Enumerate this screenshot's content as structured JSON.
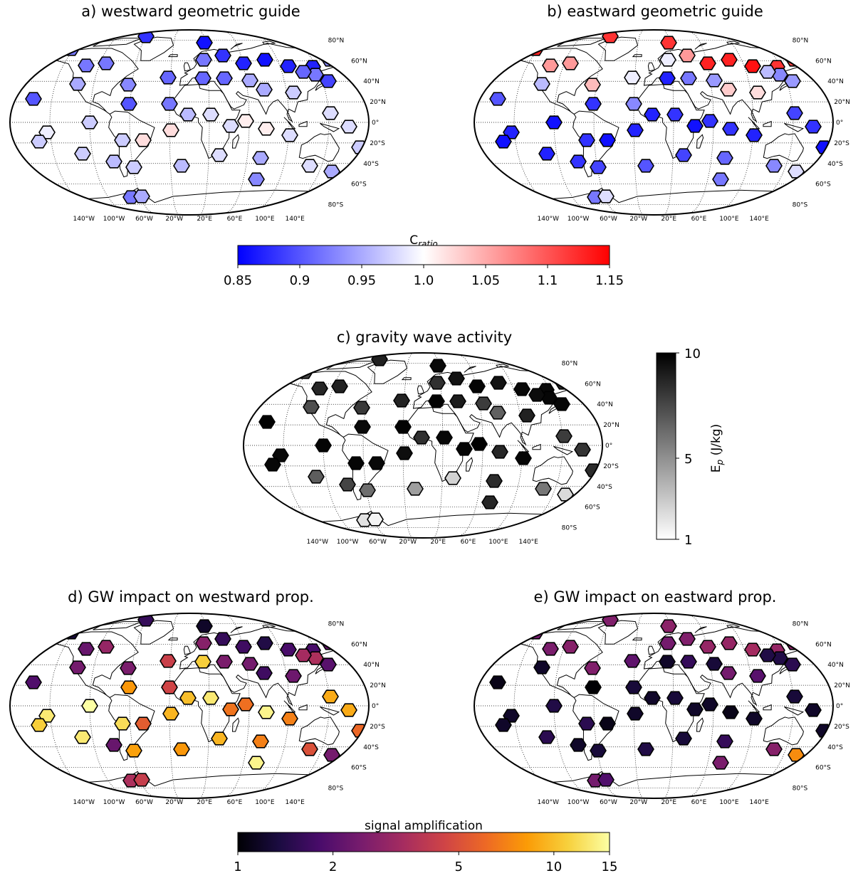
{
  "panels": [
    {
      "id": "a",
      "title": "a) westward geometric guide",
      "scale": "ratio",
      "values": [
        0.92,
        0.88,
        0.92,
        0.92,
        0.86,
        0.88,
        0.87,
        0.86,
        0.87,
        0.87,
        0.93,
        0.95,
        0.93,
        0.91,
        0.92,
        0.91,
        0.95,
        0.95,
        0.97,
        0.92,
        0.89,
        0.91,
        0.93,
        0.9,
        0.9,
        0.91,
        0.92,
        0.97,
        0.99,
        0.97,
        0.97,
        1.02,
        1.02,
        0.96,
        0.98,
        0.98,
        1.01,
        1.01,
        0.98,
        0.98,
        0.98,
        0.97,
        0.97,
        0.96,
        0.97,
        0.96,
        0.98,
        0.95,
        0.93,
        0.98,
        0.95,
        0.94,
        0.92,
        0.95
      ]
    },
    {
      "id": "b",
      "title": "b) eastward geometric guide",
      "scale": "ratio",
      "values": [
        1.13,
        1.12,
        1.06,
        1.06,
        1.12,
        1.06,
        1.13,
        1.13,
        1.14,
        1.12,
        1.11,
        0.96,
        1.04,
        0.99,
        0.99,
        0.92,
        0.94,
        1.03,
        1.02,
        0.93,
        0.94,
        0.96,
        0.89,
        0.9,
        0.88,
        0.87,
        0.93,
        0.86,
        0.87,
        0.86,
        0.88,
        0.86,
        0.87,
        0.87,
        0.88,
        0.86,
        0.88,
        0.88,
        0.87,
        0.89,
        0.88,
        0.86,
        0.87,
        0.88,
        0.89,
        0.9,
        0.89,
        0.91,
        0.92,
        0.93,
        0.98,
        0.99,
        0.92,
        0.98
      ]
    },
    {
      "id": "c",
      "title": "c) gravity wave activity",
      "scale": "ep",
      "values": [
        5.2,
        7.5,
        7.0,
        7.4,
        9.2,
        8.4,
        9.6,
        8.4,
        9.3,
        9.3,
        6.7,
        4.9,
        6.0,
        7.3,
        6.5,
        7.8,
        5.8,
        4.2,
        7.4,
        9.5,
        9.5,
        9.0,
        9.7,
        9.8,
        9.2,
        9.8,
        9.7,
        9.6,
        9.2,
        9.4,
        9.6,
        9.3,
        8.8,
        6.5,
        9.4,
        9.6,
        9.9,
        7.0,
        9.6,
        5.8,
        6.2,
        6.7,
        4.3,
        5.4,
        3.7,
        2.4,
        1.5,
        6.7,
        7.1,
        3.4,
        1.4,
        1.6,
        1.3,
        1.1
      ]
    },
    {
      "id": "d",
      "title": "d) GW impact on westward prop.",
      "scale": "amp",
      "values": [
        1.3,
        1.6,
        2.2,
        3.0,
        1.2,
        1.6,
        1.7,
        1.4,
        1.8,
        1.8,
        2.2,
        2.4,
        2.5,
        4.3,
        2.7,
        2.5,
        2.4,
        1.7,
        2.3,
        3.5,
        2.0,
        3.3,
        4.0,
        1.9,
        8.0,
        11,
        4.5,
        15,
        13,
        11,
        12,
        5.5,
        9.5,
        10,
        13,
        6.5,
        6.3,
        14,
        7.0,
        9.0,
        9.0,
        6.0,
        13,
        2.2,
        8.5,
        8.0,
        9.5,
        7.0,
        14,
        5.0,
        2.4,
        7.8,
        3.5,
        4.2
      ]
    },
    {
      "id": "e",
      "title": "e) GW impact on eastward prop.",
      "scale": "amp",
      "values": [
        2.4,
        2.6,
        2.5,
        2.7,
        2.8,
        2.6,
        3.0,
        3.0,
        3.3,
        3.0,
        2.8,
        1.2,
        2.6,
        2.1,
        2.4,
        1.6,
        1.3,
        2.4,
        2.0,
        1.4,
        1.5,
        1.4,
        1.1,
        1.1,
        1.0,
        1.2,
        1.3,
        1.4,
        1.2,
        1.2,
        1.5,
        1.1,
        1.2,
        1.2,
        1.3,
        1.2,
        1.2,
        1.1,
        1.2,
        1.3,
        1.2,
        1.2,
        1.5,
        1.2,
        1.3,
        1.4,
        1.3,
        1.6,
        2.5,
        2.7,
        7.5,
        2.6,
        2.4,
        1.9
      ]
    }
  ],
  "lat_labels": [
    "80°N",
    "60°N",
    "40°N",
    "20°N",
    "0°",
    "20°S",
    "40°S",
    "60°S",
    "80°S"
  ],
  "lon_labels": [
    "140°W",
    "100°W",
    "60°W",
    "20°W",
    "20°E",
    "60°E",
    "100°E",
    "140°E"
  ],
  "colorbars": {
    "ratio": {
      "title_main": "C",
      "title_sub": "ratio",
      "ticks": [
        "0.85",
        "0.9",
        "0.95",
        "1.0",
        "1.05",
        "1.1",
        "1.15"
      ],
      "colors": [
        "#0000ff",
        "#ffffff",
        "#ff0000"
      ],
      "range": [
        0.85,
        1.15
      ]
    },
    "ep": {
      "title_main": "E",
      "title_sub": "p",
      "title_rest": " (J/kg)",
      "ticks": [
        "10",
        "5",
        "1"
      ],
      "colors": [
        "#ffffff",
        "#000000"
      ],
      "range": [
        1,
        10
      ]
    },
    "amp": {
      "title": "signal amplification",
      "ticks": [
        "1",
        "2",
        "5",
        "10",
        "15"
      ],
      "colors": [
        "#000004",
        "#1b0c41",
        "#4a0c6b",
        "#781c6d",
        "#a52c60",
        "#cf4446",
        "#ed6925",
        "#fb9b06",
        "#f7d13d",
        "#fcffa4"
      ],
      "range": [
        1,
        15
      ]
    }
  }
}
